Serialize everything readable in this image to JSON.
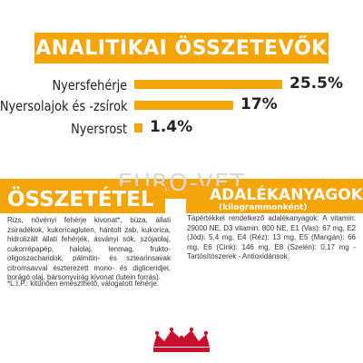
{
  "header": {
    "title": "ANALITIKAI ÖSSZETEVŐK"
  },
  "nutrients": [
    {
      "label": "Nyersfehérje",
      "value_text": "25.5%",
      "value": 25.5
    },
    {
      "label": "Nyersolajok és -zsírok",
      "value_text": "17%",
      "value": 17
    },
    {
      "label": "Nyersrost",
      "value_text": "1.4%",
      "value": 1.4
    }
  ],
  "watermark": "EURO-VET",
  "composition": {
    "heading": "ÖSSZETÉTEL",
    "text": "Rizs, növényi fehérje kivonat*, búza, állati zsiradékok, kukoricagluten, hántolt zab, kukorica, hidrolizált állati fehérjék, ásványi sók, szójaolaj, cukorrépapép, halolaj, lenmag, frukto-oligoszacharidok, pálmitin- és sztearinsavak citromsavval észterezett mono- és digliceridjei, borágó olaj, bársonyvirág kivonat (lutein forrás).",
    "footnote": "*L.I.P.: kitűnően emészthető, válogatott fehérje."
  },
  "additives": {
    "heading": "ADALÉKANYAGOK",
    "subheading": "(kilogrammonként)",
    "text": "Tápértékkel rendelkező adalékanyagok: A vitamin: 29000 NE, D3 vitamin: 800 NE, E1 (Vas): 67 mg, E2 (Jód): 5,4 mg, E4 (Réz): 13 mg, E5 (Mangán): 66 mg, E6 (Cink): 146 mg, E8 (Szelén): 0,17 mg - Tartósítószerek - Antioxidánsok."
  },
  "colors": {
    "accent": "#f3a50a",
    "brand_red": "#c8102e",
    "text": "#222222"
  },
  "logo": {
    "icon": "royal-canin-crown-logo"
  }
}
